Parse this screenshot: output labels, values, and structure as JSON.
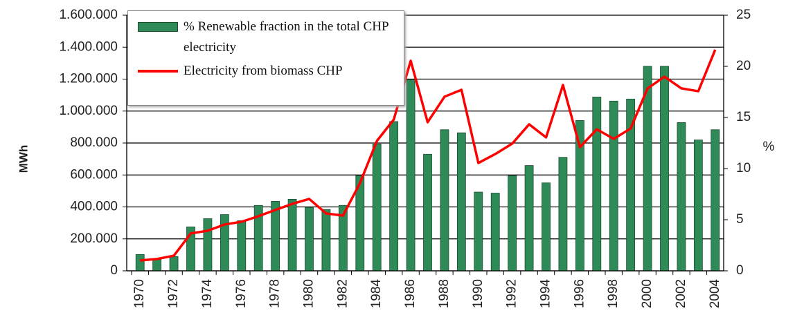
{
  "chart_data": {
    "type": "bar-line",
    "categories": [
      "1970",
      null,
      "1972",
      null,
      "1974",
      null,
      "1976",
      null,
      "1978",
      null,
      "1980",
      null,
      "1982",
      null,
      "1984",
      null,
      "1986",
      null,
      "1988",
      null,
      "1990",
      null,
      "1992",
      null,
      "1994",
      null,
      "1996",
      null,
      "1998",
      null,
      "2000",
      null,
      "2002",
      null,
      "2004"
    ],
    "series": [
      {
        "name": "% Renewable fraction in the total CHP electricity",
        "type": "bar",
        "axis": "y2",
        "color": "#2e8b57",
        "values": [
          1.6,
          1.1,
          1.4,
          4.3,
          5.1,
          5.5,
          4.9,
          6.4,
          6.8,
          7.0,
          6.2,
          6.0,
          6.4,
          9.3,
          12.4,
          14.6,
          18.7,
          11.4,
          13.8,
          13.5,
          7.7,
          7.6,
          9.3,
          10.3,
          8.6,
          11.1,
          14.7,
          17.0,
          16.6,
          16.8,
          20.0,
          20.0,
          14.5,
          12.8,
          13.8
        ]
      },
      {
        "name": "Electricity from biomass CHP",
        "type": "line",
        "axis": "y",
        "color": "#ff0000",
        "values": [
          65000,
          74000,
          95000,
          234000,
          251000,
          290000,
          307000,
          342000,
          381000,
          419000,
          450000,
          359000,
          346000,
          549000,
          813000,
          947000,
          1315000,
          930000,
          1090000,
          1133000,
          675000,
          731000,
          796000,
          917000,
          835000,
          1163000,
          774000,
          886000,
          826000,
          891000,
          1142000,
          1215000,
          1142000,
          1124000,
          1384000
        ]
      }
    ],
    "y_label": "MWh",
    "y2_label": "%",
    "ylim": [
      0,
      1600000
    ],
    "yticks": [
      0,
      {
        "value": 200000,
        "label": "200.000"
      },
      {
        "value": 400000,
        "label": "400.000"
      },
      {
        "value": 600000,
        "label": "600.000"
      },
      {
        "value": 800000,
        "label": "800.000"
      },
      {
        "value": 1000000,
        "label": "1.000.000"
      },
      {
        "value": 1200000,
        "label": "1.200.000"
      },
      {
        "value": 1400000,
        "label": "1.400.000"
      },
      {
        "value": 1600000,
        "label": "1.600.000"
      }
    ],
    "y2lim": [
      0,
      25
    ],
    "y2ticks": [
      0,
      5,
      10,
      15,
      20,
      25
    ],
    "grid": true
  }
}
